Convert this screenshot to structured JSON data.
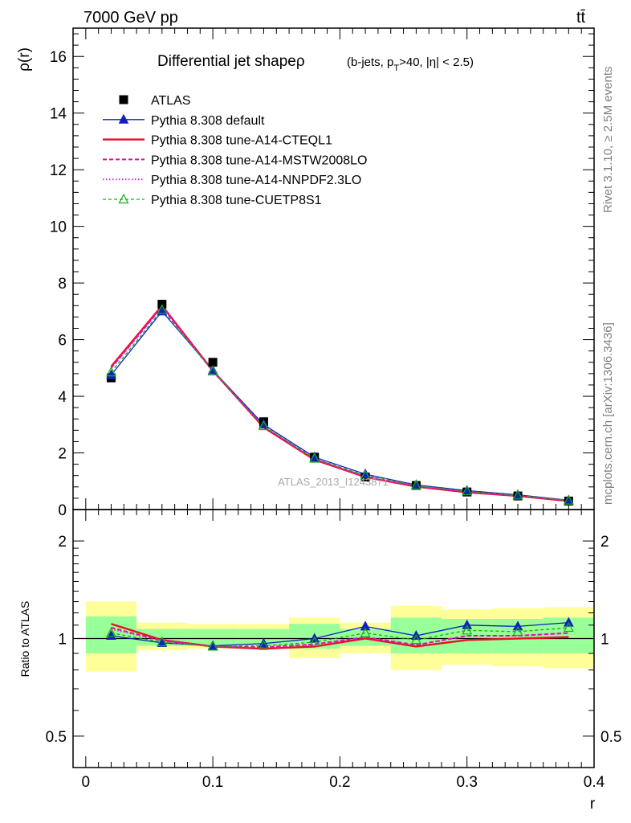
{
  "header": {
    "energy": "7000 GeV pp",
    "process": "tt̄",
    "title": "Differential jet shapeρ",
    "title_sub": "(b-jets, p_T>40, |η| < 2.5)"
  },
  "side_labels": {
    "rivet": "Rivet 3.1.10, ≥ 2.5M events",
    "mcplots": "mcplots.cern.ch [arXiv:1306.3436]"
  },
  "watermark": "ATLAS_2013_I1243871",
  "colors": {
    "data": "#000000",
    "default": "#1020c0",
    "cteql1": "#e8102a",
    "mstw": "#e0108a",
    "nnpdf": "#e020e0",
    "cuetp8s1": "#10b010",
    "band_outer": "#ffff99",
    "band_inner": "#99ff99"
  },
  "chart_data": [
    {
      "type": "line",
      "name": "main",
      "ylabel": "ρ(r)",
      "xlim": [
        -0.01,
        0.4
      ],
      "ylim": [
        0,
        17
      ],
      "yticks": [
        0,
        2,
        4,
        6,
        8,
        10,
        12,
        14,
        16
      ],
      "x": [
        0.02,
        0.06,
        0.1,
        0.14,
        0.18,
        0.22,
        0.26,
        0.3,
        0.34,
        0.38
      ],
      "series": [
        {
          "name": "ATLAS",
          "key": "data",
          "values": [
            4.65,
            7.25,
            5.2,
            3.1,
            1.85,
            1.15,
            0.85,
            0.62,
            0.48,
            0.3
          ]
        },
        {
          "name": "Pythia 8.308 default",
          "key": "default",
          "values": [
            4.75,
            7.0,
            4.92,
            3.0,
            1.85,
            1.25,
            0.87,
            0.67,
            0.52,
            0.33
          ]
        },
        {
          "name": "Pythia 8.308 tune-A14-CTEQL1",
          "key": "cteql1",
          "values": [
            5.05,
            7.2,
            4.9,
            2.9,
            1.76,
            1.15,
            0.81,
            0.61,
            0.48,
            0.3
          ]
        },
        {
          "name": "Pythia 8.308 tune-A14-MSTW2008LO",
          "key": "mstw",
          "values": [
            5.0,
            7.15,
            4.9,
            2.92,
            1.78,
            1.17,
            0.82,
            0.63,
            0.49,
            0.31
          ]
        },
        {
          "name": "Pythia 8.308 tune-A14-NNPDF2.3LO",
          "key": "nnpdf",
          "values": [
            4.98,
            7.15,
            4.88,
            2.92,
            1.78,
            1.17,
            0.82,
            0.63,
            0.49,
            0.31
          ]
        },
        {
          "name": "Pythia 8.308 tune-CUETP8S1",
          "key": "cuetp8s1",
          "values": [
            4.85,
            7.05,
            4.88,
            2.95,
            1.8,
            1.2,
            0.85,
            0.65,
            0.5,
            0.32
          ]
        }
      ]
    },
    {
      "type": "line",
      "name": "ratio",
      "xlabel": "r",
      "ylabel": "Ratio to ATLAS",
      "xlim": [
        -0.01,
        0.4
      ],
      "ylim": [
        0.4,
        2.5
      ],
      "log_y": true,
      "yticks": [
        0.5,
        1,
        2
      ],
      "xticks": [
        0,
        0.1,
        0.2,
        0.3,
        0.4
      ],
      "xtick_labels": [
        "0",
        "0.1",
        "0.2",
        "0.3",
        "0.4"
      ],
      "bins": [
        [
          0.0,
          0.04
        ],
        [
          0.04,
          0.08
        ],
        [
          0.08,
          0.12
        ],
        [
          0.12,
          0.16
        ],
        [
          0.16,
          0.2
        ],
        [
          0.2,
          0.24
        ],
        [
          0.24,
          0.28
        ],
        [
          0.28,
          0.32
        ],
        [
          0.32,
          0.36
        ],
        [
          0.36,
          0.4
        ]
      ],
      "band_outer": [
        [
          0.79,
          1.3
        ],
        [
          0.92,
          1.12
        ],
        [
          0.93,
          1.11
        ],
        [
          0.93,
          1.11
        ],
        [
          0.87,
          1.16
        ],
        [
          0.9,
          1.12
        ],
        [
          0.8,
          1.26
        ],
        [
          0.83,
          1.23
        ],
        [
          0.82,
          1.24
        ],
        [
          0.81,
          1.25
        ]
      ],
      "band_inner": [
        [
          0.9,
          1.17
        ],
        [
          0.95,
          1.07
        ],
        [
          0.95,
          1.07
        ],
        [
          0.95,
          1.07
        ],
        [
          0.93,
          1.11
        ],
        [
          0.95,
          1.07
        ],
        [
          0.9,
          1.16
        ],
        [
          0.9,
          1.15
        ],
        [
          0.9,
          1.15
        ],
        [
          0.9,
          1.16
        ]
      ],
      "x": [
        0.02,
        0.06,
        0.1,
        0.14,
        0.18,
        0.22,
        0.26,
        0.3,
        0.34,
        0.38
      ],
      "series": [
        {
          "key": "default",
          "values": [
            1.02,
            0.97,
            0.95,
            0.965,
            1.0,
            1.09,
            1.02,
            1.1,
            1.09,
            1.12
          ]
        },
        {
          "key": "cteql1",
          "values": [
            1.11,
            0.99,
            0.945,
            0.93,
            0.945,
            1.0,
            0.945,
            0.99,
            1.0,
            1.01
          ]
        },
        {
          "key": "mstw",
          "values": [
            1.08,
            0.985,
            0.945,
            0.94,
            0.96,
            1.01,
            0.955,
            1.02,
            1.02,
            1.04
          ]
        },
        {
          "key": "nnpdf",
          "values": [
            1.07,
            0.985,
            0.945,
            0.94,
            0.96,
            1.01,
            0.955,
            1.02,
            1.02,
            1.04
          ]
        },
        {
          "key": "cuetp8s1",
          "values": [
            1.04,
            0.975,
            0.945,
            0.95,
            0.975,
            1.04,
            0.99,
            1.06,
            1.05,
            1.08
          ]
        }
      ]
    }
  ]
}
